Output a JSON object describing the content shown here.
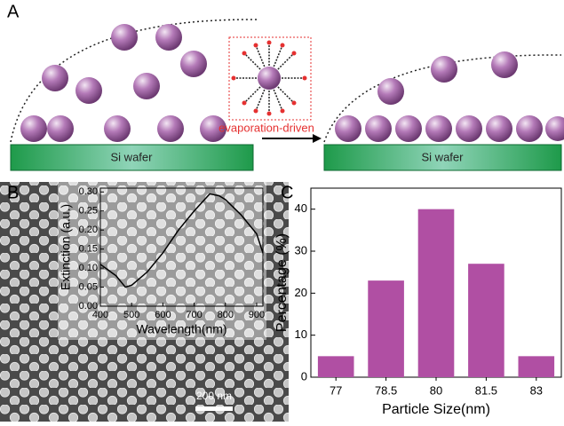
{
  "panel_labels": [
    "A",
    "B",
    "C"
  ],
  "diagram": {
    "substrate_labels": [
      "Si wafer",
      "Si wafer"
    ],
    "arrow_label": "evaporation-driven"
  },
  "scale_bar": "200 nm",
  "chart_data": [
    {
      "type": "line",
      "xlabel": "Wavelength(nm)",
      "ylabel": "Extinction (a.u.)",
      "x": [
        400,
        450,
        480,
        500,
        550,
        600,
        650,
        700,
        750,
        780,
        800,
        850,
        900,
        920
      ],
      "y": [
        0.11,
        0.08,
        0.05,
        0.055,
        0.09,
        0.14,
        0.2,
        0.25,
        0.295,
        0.29,
        0.28,
        0.24,
        0.19,
        0.14
      ],
      "color": "#000000",
      "xlim": [
        400,
        920
      ],
      "xticks": [
        400,
        500,
        600,
        700,
        800,
        900
      ],
      "ylim": [
        0,
        0.31
      ],
      "yticks": [
        {
          "value": 0,
          "label": "0.00"
        },
        {
          "value": 0.05,
          "label": "0.05"
        },
        {
          "value": 0.1,
          "label": "0.10"
        },
        {
          "value": 0.15,
          "label": "0.15"
        },
        {
          "value": 0.2,
          "label": "0.20"
        },
        {
          "value": 0.25,
          "label": "0.25"
        },
        {
          "value": 0.3,
          "label": "0.30"
        }
      ]
    },
    {
      "type": "bar",
      "xlabel": "Particle Size(nm)",
      "ylabel": "Percentage (%)",
      "categories": [
        "77",
        "78.5",
        "80",
        "81.5",
        "83"
      ],
      "values": [
        5,
        23,
        40,
        27,
        5
      ],
      "color": "#b04fa3",
      "ylim": [
        0,
        45
      ],
      "yticks": [
        0,
        10,
        20,
        30,
        40
      ]
    }
  ]
}
